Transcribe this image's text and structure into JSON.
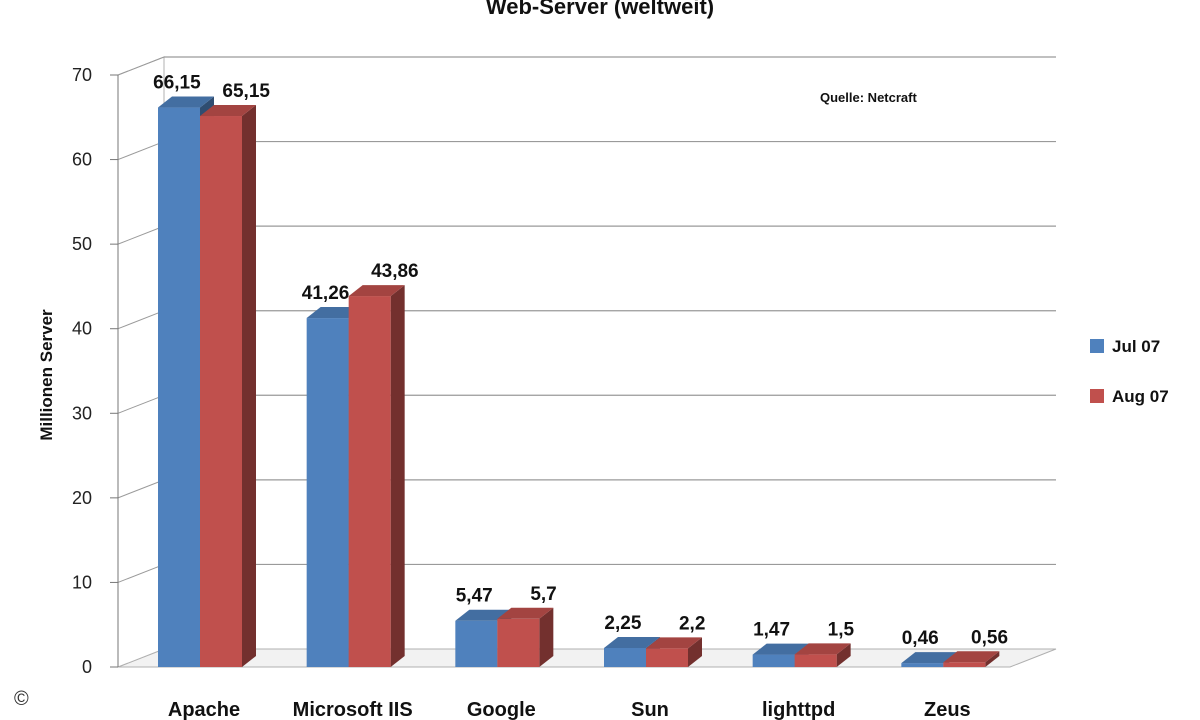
{
  "chart_data": {
    "type": "bar",
    "title": "Web-Server (weltweit)",
    "ylabel": "Millionen Server",
    "xlabel": "",
    "annotation": "Quelle: Netcraft",
    "watermark": "©",
    "categories": [
      "Apache",
      "Microsoft IIS",
      "Google",
      "Sun",
      "lighttpd",
      "Zeus"
    ],
    "series": [
      {
        "name": "Jul 07",
        "values": [
          66.15,
          41.26,
          5.47,
          2.25,
          1.47,
          0.46
        ],
        "labels": [
          "66,15",
          "41,26",
          "5,47",
          "2,25",
          "1,47",
          "0,46"
        ],
        "color": "#4F81BD"
      },
      {
        "name": "Aug 07",
        "values": [
          65.15,
          43.86,
          5.7,
          2.2,
          1.5,
          0.56
        ],
        "labels": [
          "65,15",
          "43,86",
          "5,7",
          "2,2",
          "1,5",
          "0,56"
        ],
        "color": "#C0504D"
      }
    ],
    "yticks": [
      "0",
      "10",
      "20",
      "30",
      "40",
      "50",
      "60",
      "70"
    ],
    "ylim": [
      0,
      70
    ],
    "grid": true,
    "legend_position": "right"
  }
}
